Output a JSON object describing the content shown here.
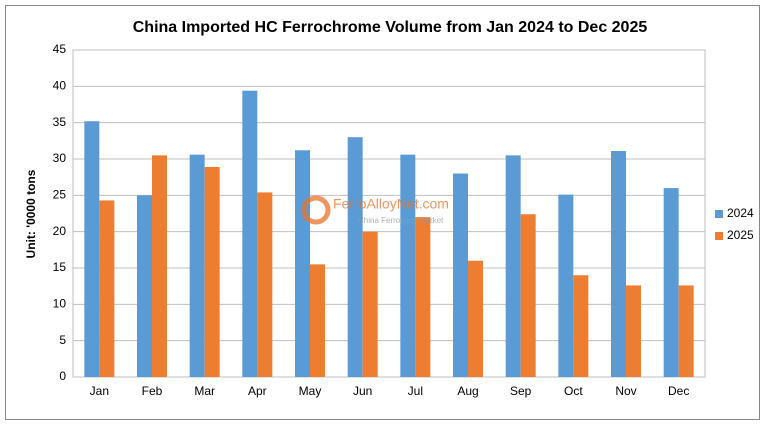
{
  "chart_data": {
    "type": "bar",
    "title": "China Imported HC Ferrochrome Volume from Jan 2024 to Dec 2025",
    "y_label": "Unit: '0000 tons",
    "watermark": {
      "text": "FerroAlloyNet.com",
      "subtext": "China Ferroalloy Market"
    },
    "categories": [
      "Jan",
      "Feb",
      "Mar",
      "Apr",
      "May",
      "Jun",
      "Jul",
      "Aug",
      "Sep",
      "Oct",
      "Nov",
      "Dec"
    ],
    "series": [
      {
        "name": "2024",
        "color": "#5b9bd5",
        "values": [
          35.2,
          25,
          30.6,
          39.4,
          31.2,
          33,
          30.6,
          28,
          30.5,
          25.1,
          31.1,
          26
        ]
      },
      {
        "name": "2025",
        "color": "#ed7d31",
        "values": [
          24.3,
          30.5,
          28.9,
          25.4,
          15.5,
          20,
          22,
          16,
          22.4,
          14,
          12.6,
          12.6
        ]
      }
    ],
    "ylim": [
      0,
      45
    ],
    "yticks": [
      0,
      5,
      10,
      15,
      20,
      25,
      30,
      35,
      40,
      45
    ],
    "grid": true,
    "legend": "right"
  }
}
